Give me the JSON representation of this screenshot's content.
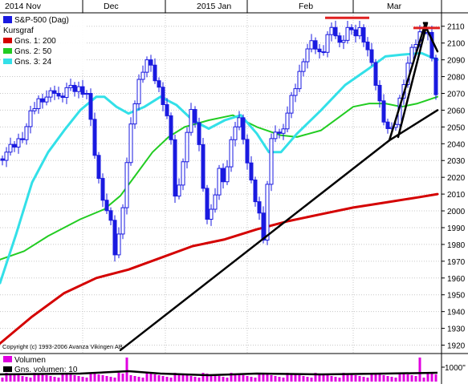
{
  "chart_data": {
    "type": "candlestick",
    "top_axis_labels": [
      "2014 Nov",
      "Dec",
      "2015 Jan",
      "Feb",
      "Mar"
    ],
    "y_ticks": [
      1920,
      1930,
      1940,
      1950,
      1960,
      1970,
      1980,
      1990,
      2000,
      2010,
      2020,
      2030,
      2040,
      2050,
      2060,
      2070,
      2080,
      2090,
      2100,
      2110
    ],
    "ylim": [
      1915,
      2118
    ],
    "legend": {
      "main": "S&P-500 (Dag)",
      "group_label": "Kursgraf",
      "ma200": "Gns. 1: 200",
      "ma50": "Gns. 2: 50",
      "ma24": "Gns. 3: 24"
    },
    "copyright": "Copyright (c) 1993-2006 Avanza Vikingen AB",
    "volume_legend": {
      "volume": "Volumen",
      "avg_volume": "Gns. volumen: 10"
    },
    "volume_tick": "1000\"",
    "colors": {
      "candle": "#1a1ae0",
      "ma200": "#d40000",
      "ma50": "#22cc22",
      "ma24": "#33e0e8",
      "trendline": "#000000",
      "resistance": "#e02020",
      "volume": "#e000e0",
      "grid": "#c8c8c8"
    },
    "ma200": [
      [
        0,
        1921
      ],
      [
        40,
        1937
      ],
      [
        80,
        1951
      ],
      [
        120,
        1960
      ],
      [
        160,
        1965
      ],
      [
        200,
        1972
      ],
      [
        240,
        1979
      ],
      [
        280,
        1983
      ],
      [
        320,
        1989
      ],
      [
        360,
        1994
      ],
      [
        400,
        1998
      ],
      [
        440,
        2002
      ],
      [
        480,
        2005
      ],
      [
        520,
        2008
      ],
      [
        545,
        2010
      ]
    ],
    "ma50": [
      [
        0,
        1971
      ],
      [
        30,
        1976
      ],
      [
        60,
        1985
      ],
      [
        100,
        1995
      ],
      [
        130,
        2001
      ],
      [
        150,
        2009
      ],
      [
        170,
        2022
      ],
      [
        190,
        2035
      ],
      [
        210,
        2044
      ],
      [
        230,
        2050
      ],
      [
        260,
        2054
      ],
      [
        290,
        2057
      ],
      [
        320,
        2050
      ],
      [
        350,
        2045
      ],
      [
        370,
        2044
      ],
      [
        400,
        2048
      ],
      [
        420,
        2055
      ],
      [
        440,
        2062
      ],
      [
        460,
        2064
      ],
      [
        480,
        2064
      ],
      [
        500,
        2062
      ],
      [
        520,
        2064
      ],
      [
        545,
        2068
      ]
    ],
    "ma24": [
      [
        0,
        1957
      ],
      [
        20,
        1986
      ],
      [
        40,
        2017
      ],
      [
        60,
        2035
      ],
      [
        80,
        2048
      ],
      [
        100,
        2060
      ],
      [
        120,
        2068
      ],
      [
        130,
        2068
      ],
      [
        145,
        2062
      ],
      [
        160,
        2058
      ],
      [
        180,
        2062
      ],
      [
        200,
        2068
      ],
      [
        220,
        2063
      ],
      [
        240,
        2054
      ],
      [
        260,
        2049
      ],
      [
        280,
        2054
      ],
      [
        300,
        2057
      ],
      [
        320,
        2046
      ],
      [
        335,
        2035
      ],
      [
        350,
        2035
      ],
      [
        370,
        2046
      ],
      [
        400,
        2060
      ],
      [
        430,
        2075
      ],
      [
        460,
        2085
      ],
      [
        480,
        2092
      ],
      [
        500,
        2093
      ],
      [
        525,
        2094
      ],
      [
        545,
        2090
      ]
    ],
    "trendlines": [
      [
        [
          150,
          1917
        ],
        [
          485,
          2042
        ]
      ],
      [
        [
          485,
          2042
        ],
        [
          545,
          2060
        ]
      ],
      [
        [
          485,
          2042
        ],
        [
          530,
          2112
        ]
      ],
      [
        [
          496,
          2044
        ],
        [
          532,
          2112
        ]
      ],
      [
        [
          528,
          2112
        ],
        [
          545,
          2095
        ]
      ]
    ],
    "resistance_lines": [
      [
        [
          405,
          2115
        ],
        [
          460,
          2115
        ]
      ],
      [
        [
          515,
          2109
        ],
        [
          548,
          2109
        ]
      ]
    ]
  }
}
